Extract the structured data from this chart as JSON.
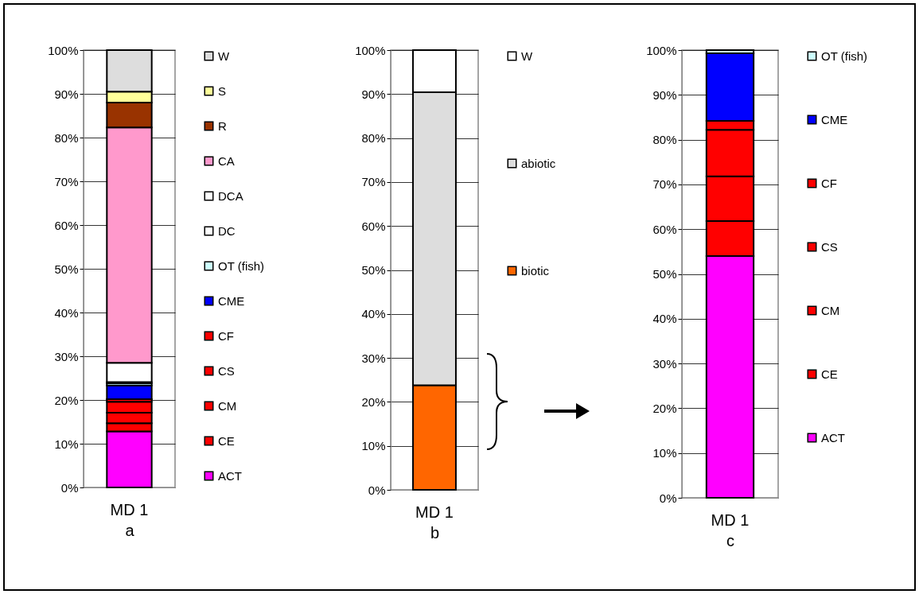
{
  "chart_data": [
    {
      "type": "bar",
      "stacked": true,
      "categories": [
        "MD 1"
      ],
      "xlabel": "a",
      "ylim": [
        0,
        100
      ],
      "yticks": [
        {
          "value": 0,
          "label": "0%"
        },
        {
          "value": 10,
          "label": "10%"
        },
        {
          "value": 20,
          "label": "20%"
        },
        {
          "value": 30,
          "label": "30%"
        },
        {
          "value": 40,
          "label": "40%"
        },
        {
          "value": 50,
          "label": "50%"
        },
        {
          "value": 60,
          "label": "60%"
        },
        {
          "value": 70,
          "label": "70%"
        },
        {
          "value": 80,
          "label": "80%"
        },
        {
          "value": 90,
          "label": "90%"
        },
        {
          "value": 100,
          "label": "100%"
        }
      ],
      "grid": "y",
      "legend": "right",
      "series": [
        {
          "name": "ACT",
          "color": "#ff00ff",
          "values": [
            12.8
          ]
        },
        {
          "name": "CE",
          "color": "#ff0000",
          "values": [
            1.9
          ]
        },
        {
          "name": "CM",
          "color": "#ff0000",
          "values": [
            2.4
          ]
        },
        {
          "name": "CS",
          "color": "#ff0000",
          "values": [
            2.5
          ]
        },
        {
          "name": "CF",
          "color": "#ff0000",
          "values": [
            0.6
          ]
        },
        {
          "name": "CME",
          "color": "#0000ff",
          "values": [
            3.1
          ]
        },
        {
          "name": "OT (fish)",
          "color": "#ccffff",
          "values": [
            0.5
          ]
        },
        {
          "name": "DC",
          "color": "#ffffff",
          "values": [
            0.3
          ]
        },
        {
          "name": "DCA",
          "color": "#ffffff",
          "values": [
            4.4
          ]
        },
        {
          "name": "CA",
          "color": "#ff99cc",
          "values": [
            53.8
          ]
        },
        {
          "name": "R",
          "color": "#993300",
          "values": [
            5.7
          ]
        },
        {
          "name": "S",
          "color": "#ffff99",
          "values": [
            2.5
          ]
        },
        {
          "name": "W",
          "color": "#dddddd",
          "values": [
            9.5
          ]
        }
      ]
    },
    {
      "type": "bar",
      "stacked": true,
      "categories": [
        "MD 1"
      ],
      "xlabel": "b",
      "ylim": [
        0,
        100
      ],
      "yticks": [
        {
          "value": 0,
          "label": "0%"
        },
        {
          "value": 10,
          "label": "10%"
        },
        {
          "value": 20,
          "label": "20%"
        },
        {
          "value": 30,
          "label": "30%"
        },
        {
          "value": 40,
          "label": "40%"
        },
        {
          "value": 50,
          "label": "50%"
        },
        {
          "value": 60,
          "label": "60%"
        },
        {
          "value": 70,
          "label": "70%"
        },
        {
          "value": 80,
          "label": "80%"
        },
        {
          "value": 90,
          "label": "90%"
        },
        {
          "value": 100,
          "label": "100%"
        }
      ],
      "grid": "y",
      "legend": "right",
      "series": [
        {
          "name": "biotic",
          "color": "#ff6600",
          "values": [
            23.8
          ]
        },
        {
          "name": "abiotic",
          "color": "#dddddd",
          "values": [
            66.6
          ]
        },
        {
          "name": "W",
          "color": "#ffffff",
          "values": [
            9.6
          ]
        }
      ]
    },
    {
      "type": "bar",
      "stacked": true,
      "categories": [
        "MD 1"
      ],
      "xlabel": "c",
      "ylim": [
        0,
        100
      ],
      "yticks": [
        {
          "value": 0,
          "label": "0%"
        },
        {
          "value": 10,
          "label": "10%"
        },
        {
          "value": 20,
          "label": "20%"
        },
        {
          "value": 30,
          "label": "30%"
        },
        {
          "value": 40,
          "label": "40%"
        },
        {
          "value": 50,
          "label": "50%"
        },
        {
          "value": 60,
          "label": "60%"
        },
        {
          "value": 70,
          "label": "70%"
        },
        {
          "value": 80,
          "label": "80%"
        },
        {
          "value": 90,
          "label": "90%"
        },
        {
          "value": 100,
          "label": "100%"
        }
      ],
      "grid": "y",
      "legend": "right",
      "series": [
        {
          "name": "ACT",
          "color": "#ff00ff",
          "values": [
            54.0
          ]
        },
        {
          "name": "CE",
          "color": "#ff0000",
          "values": [
            7.8
          ]
        },
        {
          "name": "CM",
          "color": "#ff0000",
          "values": [
            10.0
          ]
        },
        {
          "name": "CS",
          "color": "#ff0000",
          "values": [
            10.4
          ]
        },
        {
          "name": "CF",
          "color": "#ff0000",
          "values": [
            2.0
          ]
        },
        {
          "name": "CME",
          "color": "#0000ff",
          "values": [
            15.1
          ]
        },
        {
          "name": "OT (fish)",
          "color": "#ccffff",
          "values": [
            0.7
          ]
        }
      ]
    }
  ]
}
